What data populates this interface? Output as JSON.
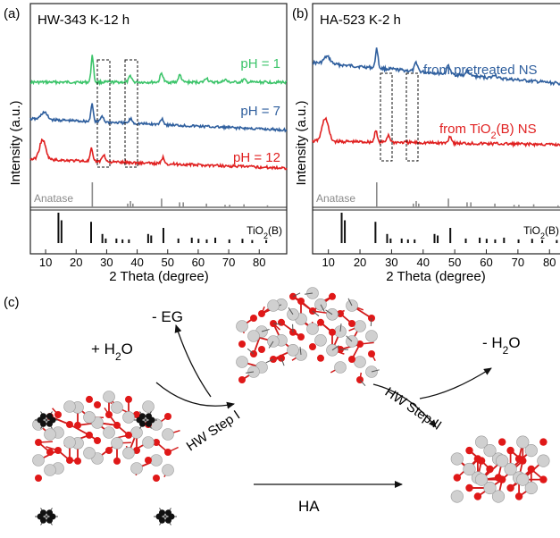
{
  "colors": {
    "green": "#3cc46a",
    "blue": "#2f5f9e",
    "red": "#e02020",
    "gray": "#8a8a8a",
    "black": "#111111"
  },
  "panel_a": {
    "label": "(a)",
    "title": "HW-343 K-12 h",
    "ylabel": "Intensity (a.u.)",
    "xlabel": "2 Theta (degree)",
    "ref_top": "Anatase",
    "ref_bottom": "TiO",
    "ref_bottom_sub": "2",
    "ref_bottom_tail": "(B)",
    "series_labels": [
      {
        "main": "pH = 1"
      },
      {
        "main": "pH = 7"
      },
      {
        "main": "pH = 12"
      }
    ]
  },
  "panel_b": {
    "label": "(b)",
    "title": "HA-523 K-2 h",
    "ylabel": "Intensity (a.u.)",
    "xlabel": "2 Theta (degree)",
    "ref_top": "Anatase",
    "ref_bottom": "TiO",
    "ref_bottom_sub": "2",
    "ref_bottom_tail": "(B)",
    "series_labels": [
      {
        "main": "from pretreated NS"
      },
      {
        "main": "from TiO",
        "sub": "2",
        "tail": "(B) NS"
      }
    ]
  },
  "panel_c": {
    "label": "(c)",
    "minus_eg": "- EG",
    "plus_h2o": "+ H",
    "plus_h2o_sub": "2",
    "plus_h2o_tail": "O",
    "minus_h2o": "- H",
    "minus_h2o_sub": "2",
    "minus_h2o_tail": "O",
    "step1": "HW Step I",
    "step2": "HW Step II",
    "ha": "HA"
  },
  "chart_data": [
    {
      "type": "line",
      "panel": "a",
      "title": "HW-343 K-12 h",
      "xlabel": "2 Theta (degree)",
      "ylabel": "Intensity (a.u.)",
      "xlim": [
        5,
        89
      ],
      "xticks": [
        10,
        20,
        30,
        40,
        50,
        60,
        70,
        80
      ],
      "series": [
        {
          "name": "pH = 1",
          "peaks": [
            25.3,
            37.8,
            48.0,
            54.0,
            62.7,
            68.8,
            75.0
          ]
        },
        {
          "name": "pH = 7",
          "peaks": [
            9.5,
            25.2,
            28.5,
            37.9,
            48.1
          ]
        },
        {
          "name": "pH = 12",
          "peaks": [
            9.0,
            25.0,
            29.0,
            48.5
          ]
        }
      ],
      "references": [
        {
          "name": "Anatase",
          "peaks": [
            [
              25.3,
              1.0
            ],
            [
              36.9,
              0.15
            ],
            [
              37.8,
              0.25
            ],
            [
              38.6,
              0.15
            ],
            [
              48.0,
              0.35
            ],
            [
              53.9,
              0.2
            ],
            [
              55.1,
              0.2
            ],
            [
              62.7,
              0.15
            ],
            [
              68.8,
              0.1
            ],
            [
              70.3,
              0.1
            ],
            [
              75.0,
              0.12
            ],
            [
              82.7,
              0.08
            ]
          ]
        },
        {
          "name": "TiO2(B)",
          "peaks": [
            [
              14.2,
              1.0
            ],
            [
              15.2,
              0.75
            ],
            [
              24.9,
              0.7
            ],
            [
              28.6,
              0.3
            ],
            [
              29.7,
              0.15
            ],
            [
              33.2,
              0.15
            ],
            [
              35.2,
              0.12
            ],
            [
              37.3,
              0.12
            ],
            [
              43.6,
              0.3
            ],
            [
              44.6,
              0.25
            ],
            [
              48.6,
              0.5
            ],
            [
              53.5,
              0.15
            ],
            [
              57.9,
              0.18
            ],
            [
              60.1,
              0.14
            ],
            [
              62.8,
              0.12
            ],
            [
              65.6,
              0.18
            ],
            [
              70.2,
              0.12
            ],
            [
              74.5,
              0.14
            ],
            [
              77.7,
              0.1
            ],
            [
              82.3,
              0.1
            ]
          ]
        }
      ]
    },
    {
      "type": "line",
      "panel": "b",
      "title": "HA-523 K-2 h",
      "xlabel": "2 Theta (degree)",
      "ylabel": "Intensity (a.u.)",
      "xlim": [
        5,
        87
      ],
      "xticks": [
        10,
        20,
        30,
        40,
        50,
        60,
        70,
        80
      ],
      "series": [
        {
          "name": "from pretreated NS",
          "peaks": [
            9.6,
            25.3,
            37.8,
            48.0,
            54.0,
            62.7
          ]
        },
        {
          "name": "from TiO2(B) NS",
          "peaks": [
            9.0,
            25.0,
            29.0,
            48.5
          ]
        }
      ],
      "references": [
        {
          "name": "Anatase",
          "peaks": [
            [
              25.3,
              1.0
            ],
            [
              36.9,
              0.15
            ],
            [
              37.8,
              0.25
            ],
            [
              38.6,
              0.15
            ],
            [
              48.0,
              0.35
            ],
            [
              53.9,
              0.2
            ],
            [
              55.1,
              0.2
            ],
            [
              62.7,
              0.15
            ],
            [
              68.8,
              0.1
            ],
            [
              70.3,
              0.1
            ],
            [
              75.0,
              0.12
            ],
            [
              82.7,
              0.08
            ]
          ]
        },
        {
          "name": "TiO2(B)",
          "peaks": [
            [
              14.2,
              1.0
            ],
            [
              15.2,
              0.75
            ],
            [
              24.9,
              0.7
            ],
            [
              28.6,
              0.3
            ],
            [
              29.7,
              0.15
            ],
            [
              33.2,
              0.15
            ],
            [
              35.2,
              0.12
            ],
            [
              37.3,
              0.12
            ],
            [
              43.6,
              0.3
            ],
            [
              44.6,
              0.25
            ],
            [
              48.6,
              0.5
            ],
            [
              53.5,
              0.15
            ],
            [
              57.9,
              0.18
            ],
            [
              60.1,
              0.14
            ],
            [
              62.8,
              0.12
            ],
            [
              65.6,
              0.18
            ],
            [
              70.2,
              0.12
            ],
            [
              74.5,
              0.14
            ],
            [
              77.7,
              0.1
            ],
            [
              82.3,
              0.1
            ]
          ]
        }
      ]
    }
  ]
}
